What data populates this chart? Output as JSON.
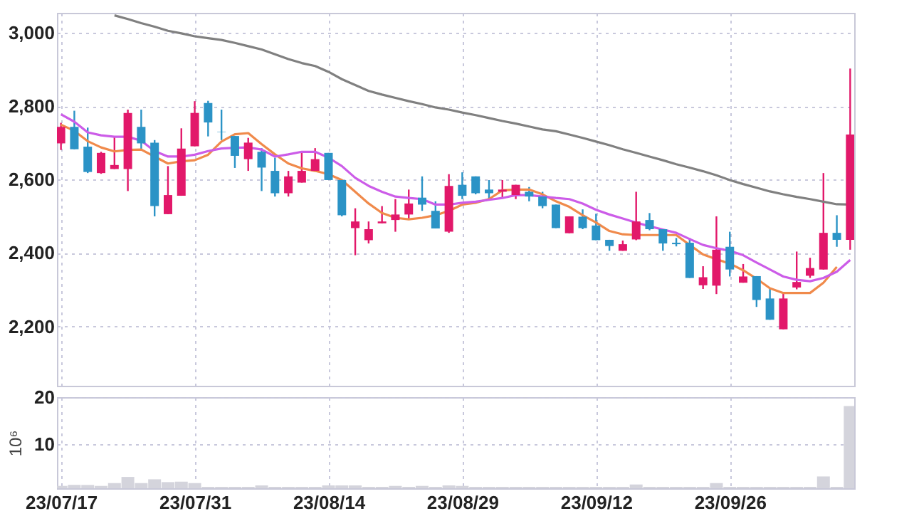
{
  "chart_data": [
    {
      "type": "candlestick",
      "categories": [
        null,
        null,
        null,
        null,
        null,
        null,
        null,
        null,
        null,
        null,
        null,
        null,
        null,
        null,
        null,
        null,
        null,
        null,
        null,
        null,
        null,
        null,
        null,
        null,
        null,
        null,
        null,
        null,
        null,
        null,
        null,
        null,
        null,
        null,
        null,
        null,
        null,
        null,
        null,
        null,
        null,
        null,
        null,
        null,
        null,
        null,
        null,
        null,
        null,
        null,
        null,
        null,
        null,
        null,
        null,
        null,
        null,
        null,
        null,
        null
      ],
      "ohlc": [
        [
          2699,
          2755,
          2681,
          2744
        ],
        [
          2744,
          2788,
          2683,
          2683
        ],
        [
          2690,
          2742,
          2618,
          2621
        ],
        [
          2618,
          2676,
          2616,
          2673
        ],
        [
          2629,
          2718,
          2629,
          2640
        ],
        [
          2629,
          2791,
          2569,
          2782
        ],
        [
          2744,
          2791,
          2681,
          2699
        ],
        [
          2701,
          2708,
          2500,
          2528
        ],
        [
          2506,
          2637,
          2506,
          2558
        ],
        [
          2556,
          2740,
          2556,
          2685
        ],
        [
          2691,
          2814,
          2691,
          2782
        ],
        [
          2809,
          2815,
          2718,
          2756
        ],
        [
          2731,
          2791,
          2708,
          2730
        ],
        [
          2719,
          2719,
          2632,
          2665
        ],
        [
          2656,
          2714,
          2624,
          2701
        ],
        [
          2676,
          2686,
          2569,
          2633
        ],
        [
          2624,
          2660,
          2554,
          2563
        ],
        [
          2563,
          2624,
          2554,
          2609
        ],
        [
          2592,
          2676,
          2592,
          2624
        ],
        [
          2624,
          2686,
          2624,
          2656
        ],
        [
          2673,
          2673,
          2599,
          2599
        ],
        [
          2599,
          2599,
          2500,
          2503
        ],
        [
          2468,
          2522,
          2394,
          2486
        ],
        [
          2435,
          2486,
          2426,
          2465
        ],
        [
          2481,
          2528,
          2481,
          2486
        ],
        [
          2490,
          2547,
          2458,
          2505
        ],
        [
          2505,
          2573,
          2494,
          2535
        ],
        [
          2551,
          2609,
          2515,
          2532
        ],
        [
          2515,
          2541,
          2467,
          2467
        ],
        [
          2458,
          2615,
          2455,
          2583
        ],
        [
          2586,
          2620,
          2547,
          2556
        ],
        [
          2609,
          2609,
          2560,
          2563
        ],
        [
          2573,
          2599,
          2547,
          2563
        ],
        [
          2567,
          2599,
          2549,
          2573
        ],
        [
          2558,
          2586,
          2547,
          2586
        ],
        [
          2567,
          2580,
          2541,
          2554
        ],
        [
          2554,
          2567,
          2522,
          2528
        ],
        [
          2532,
          2532,
          2468,
          2468
        ],
        [
          2454,
          2500,
          2454,
          2500
        ],
        [
          2499,
          2519,
          2465,
          2468
        ],
        [
          2475,
          2507,
          2435,
          2435
        ],
        [
          2436,
          2436,
          2406,
          2419
        ],
        [
          2406,
          2434,
          2406,
          2424
        ],
        [
          2437,
          2567,
          2435,
          2486
        ],
        [
          2490,
          2509,
          2462,
          2465
        ],
        [
          2465,
          2465,
          2406,
          2426
        ],
        [
          2428,
          2441,
          2418,
          2424
        ],
        [
          2428,
          2441,
          2332,
          2332
        ],
        [
          2312,
          2364,
          2302,
          2334
        ],
        [
          2311,
          2500,
          2288,
          2409
        ],
        [
          2417,
          2458,
          2336,
          2355
        ],
        [
          2319,
          2370,
          2319,
          2336
        ],
        [
          2337,
          2337,
          2253,
          2272
        ],
        [
          2276,
          2302,
          2218,
          2218
        ],
        [
          2192,
          2292,
          2192,
          2276
        ],
        [
          2306,
          2404,
          2301,
          2321
        ],
        [
          2338,
          2387,
          2332,
          2359
        ],
        [
          2355,
          2618,
          2355,
          2455
        ],
        [
          2455,
          2503,
          2417,
          2436
        ],
        [
          2436,
          2903,
          2409,
          2723
        ]
      ],
      "colors": [
        "#e2186a",
        "#2b93c6",
        "#2b93c6",
        "#e2186a",
        "#e2186a",
        "#e2186a",
        "#2b93c6",
        "#2b93c6",
        "#e2186a",
        "#e2186a",
        "#e2186a",
        "#2b93c6",
        "#2b93c6",
        "#2b93c6",
        "#e2186a",
        "#2b93c6",
        "#2b93c6",
        "#e2186a",
        "#e2186a",
        "#e2186a",
        "#2b93c6",
        "#2b93c6",
        "#e2186a",
        "#e2186a",
        "#e2186a",
        "#e2186a",
        "#e2186a",
        "#2b93c6",
        "#2b93c6",
        "#e2186a",
        "#2b93c6",
        "#2b93c6",
        "#2b93c6",
        "#e2186a",
        "#e2186a",
        "#2b93c6",
        "#2b93c6",
        "#2b93c6",
        "#e2186a",
        "#2b93c6",
        "#2b93c6",
        "#2b93c6",
        "#e2186a",
        "#e2186a",
        "#2b93c6",
        "#2b93c6",
        "#2b93c6",
        "#2b93c6",
        "#e2186a",
        "#e2186a",
        "#2b93c6",
        "#e2186a",
        "#2b93c6",
        "#2b93c6",
        "#e2186a",
        "#e2186a",
        "#e2186a",
        "#e2186a",
        "#2b93c6",
        "#e2186a"
      ],
      "series": [
        {
          "type": "line",
          "color": "#f08a4b",
          "values": [
            2750,
            2733,
            2705,
            2688,
            2677,
            2681,
            2682,
            2663,
            2644,
            2650,
            2653,
            2668,
            2704,
            2724,
            2727,
            2697,
            2669,
            2644,
            2631,
            2624,
            2615,
            2599,
            2567,
            2535,
            2509,
            2496,
            2492,
            2496,
            2503,
            2515,
            2532,
            2537,
            2547,
            2571,
            2573,
            2573,
            2560,
            2541,
            2526,
            2503,
            2483,
            2460,
            2451,
            2449,
            2449,
            2449,
            2449,
            2422,
            2396,
            2383,
            2371,
            2353,
            2330,
            2304,
            2291,
            2291,
            2291,
            2319,
            2362,
            null
          ]
        },
        {
          "type": "line",
          "color": "#cc5ce8",
          "values": [
            2778,
            2758,
            2729,
            2721,
            2717,
            2717,
            2706,
            2678,
            2663,
            2663,
            2668,
            2678,
            2685,
            2687,
            2688,
            2682,
            2663,
            2669,
            2676,
            2676,
            2660,
            2637,
            2605,
            2583,
            2567,
            2554,
            2550,
            2547,
            2532,
            2532,
            2537,
            2540,
            2545,
            2550,
            2558,
            2558,
            2554,
            2550,
            2547,
            2535,
            2518,
            2505,
            2494,
            2483,
            2473,
            2464,
            2455,
            2438,
            2422,
            2413,
            2406,
            2394,
            2374,
            2355,
            2336,
            2327,
            2323,
            2332,
            2349,
            2381
          ]
        },
        {
          "type": "line",
          "color": "#808080",
          "values": [
            null,
            null,
            null,
            null,
            3048,
            3038,
            3027,
            3017,
            3006,
            2999,
            2991,
            2986,
            2981,
            2973,
            2964,
            2955,
            2942,
            2929,
            2918,
            2910,
            2894,
            2874,
            2858,
            2842,
            2832,
            2823,
            2814,
            2806,
            2797,
            2791,
            2783,
            2776,
            2768,
            2760,
            2753,
            2745,
            2737,
            2732,
            2723,
            2714,
            2704,
            2694,
            2683,
            2673,
            2663,
            2653,
            2642,
            2633,
            2623,
            2612,
            2599,
            2588,
            2578,
            2568,
            2560,
            2553,
            2547,
            2540,
            2533,
            2532
          ]
        }
      ],
      "ylim": [
        2038,
        3055
      ],
      "yticks": [
        {
          "value": 2200,
          "label": "2,200"
        },
        {
          "value": 2400,
          "label": "2,400"
        },
        {
          "value": 2600,
          "label": "2,600"
        },
        {
          "value": 2800,
          "label": "2,800"
        },
        {
          "value": 3000,
          "label": "3,000"
        }
      ],
      "grid": true,
      "tick_labels": "y"
    },
    {
      "type": "bar",
      "categories": [
        "23/07/17",
        null,
        null,
        null,
        null,
        null,
        null,
        null,
        null,
        null,
        "23/07/31",
        null,
        null,
        null,
        null,
        null,
        null,
        null,
        null,
        null,
        "23/08/14",
        null,
        null,
        null,
        null,
        null,
        null,
        null,
        null,
        null,
        "23/08/29",
        null,
        null,
        null,
        null,
        null,
        null,
        null,
        null,
        null,
        "23/09/12",
        null,
        null,
        null,
        null,
        null,
        null,
        null,
        null,
        null,
        "23/09/26",
        null,
        null,
        null,
        null,
        null,
        null,
        null,
        null,
        null
      ],
      "values": [
        1.2,
        1.4,
        1.4,
        1.2,
        1.8,
        3.1,
        1.8,
        2.6,
        2.0,
        2.1,
        1.8,
        1.0,
        1.0,
        1.0,
        1.0,
        1.3,
        1.0,
        1.0,
        1.0,
        1.0,
        1.3,
        1.3,
        1.3,
        1.0,
        1.0,
        1.2,
        1.0,
        1.2,
        1.0,
        1.3,
        1.2,
        1.0,
        1.0,
        1.0,
        1.0,
        1.0,
        1.0,
        1.0,
        1.0,
        1.0,
        1.0,
        1.0,
        1.0,
        1.5,
        1.0,
        1.0,
        1.0,
        1.0,
        1.0,
        1.8,
        1.0,
        1.0,
        1.0,
        1.0,
        1.0,
        1.0,
        1.0,
        3.2,
        1.0,
        18.1
      ],
      "color": "#d4d4dc",
      "ylim": [
        0.7,
        20
      ],
      "yticks": [
        10,
        20
      ],
      "ylabel": "10⁶",
      "grid": true
    }
  ]
}
